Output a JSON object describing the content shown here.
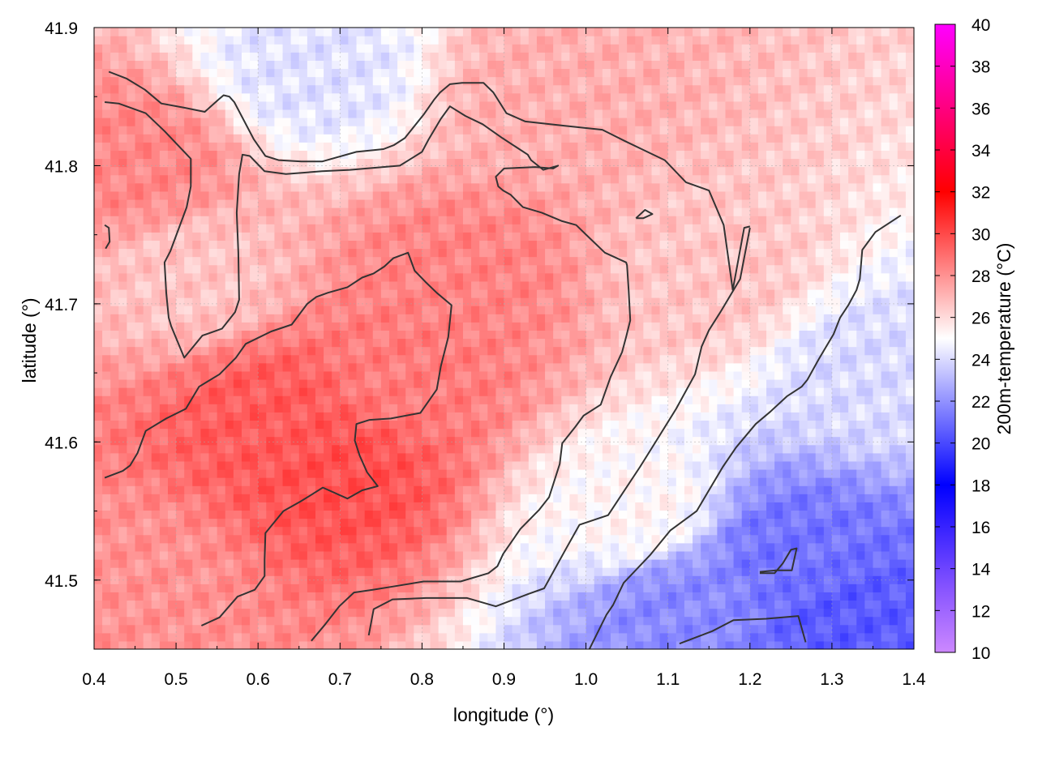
{
  "chart_data": {
    "type": "heatmap",
    "title": "",
    "xlabel": "longitude (°)",
    "ylabel": "latitude (°)",
    "colorbar_label": "200m-temperature (°C)",
    "xlim": [
      0.4,
      1.4
    ],
    "ylim": [
      41.45,
      41.9
    ],
    "x_ticks": [
      "0.4",
      "0.5",
      "0.6",
      "0.7",
      "0.8",
      "0.9",
      "1.0",
      "1.1",
      "1.2",
      "1.3",
      "1.4"
    ],
    "y_ticks": [
      "41.5",
      "41.6",
      "41.7",
      "41.8",
      "41.9"
    ],
    "colorbar_range": [
      10,
      40
    ],
    "colorbar_ticks": [
      "10",
      "12",
      "14",
      "16",
      "18",
      "20",
      "22",
      "24",
      "26",
      "28",
      "30",
      "32",
      "34",
      "36",
      "38",
      "40"
    ],
    "colormap": [
      {
        "value": 10,
        "color": "#cc88ff"
      },
      {
        "value": 13,
        "color": "#8855ff"
      },
      {
        "value": 18,
        "color": "#0000ff"
      },
      {
        "value": 25,
        "color": "#ffffff"
      },
      {
        "value": 32,
        "color": "#ff0000"
      },
      {
        "value": 40,
        "color": "#ff00ff"
      }
    ],
    "contour_levels": [
      24,
      26,
      28
    ],
    "grid": true,
    "field_description_points": [
      {
        "lon": 0.7,
        "lat": 41.58,
        "temp": 29.8
      },
      {
        "lon": 0.62,
        "lat": 41.62,
        "temp": 29.5
      },
      {
        "lon": 0.85,
        "lat": 41.72,
        "temp": 28.4
      },
      {
        "lon": 0.78,
        "lat": 41.65,
        "temp": 28.6
      },
      {
        "lon": 0.45,
        "lat": 41.8,
        "temp": 28.3
      },
      {
        "lon": 0.52,
        "lat": 41.72,
        "temp": 26.6
      },
      {
        "lon": 0.95,
        "lat": 41.85,
        "temp": 27.2
      },
      {
        "lon": 1.15,
        "lat": 41.72,
        "temp": 26.6
      },
      {
        "lon": 1.25,
        "lat": 41.52,
        "temp": 21.2
      },
      {
        "lon": 1.32,
        "lat": 41.47,
        "temp": 20.5
      },
      {
        "lon": 1.12,
        "lat": 41.48,
        "temp": 21.8
      },
      {
        "lon": 1.35,
        "lat": 41.65,
        "temp": 24.0
      },
      {
        "lon": 0.67,
        "lat": 41.87,
        "temp": 24.2
      },
      {
        "lon": 0.45,
        "lat": 41.5,
        "temp": 28.0
      },
      {
        "lon": 1.06,
        "lat": 41.55,
        "temp": 25.2
      }
    ],
    "contours": [
      [
        [
          0.413,
          41.757
        ],
        [
          0.418,
          41.755
        ],
        [
          0.419,
          41.745
        ],
        [
          0.414,
          41.74
        ]
      ],
      [
        [
          0.418,
          41.868
        ],
        [
          0.44,
          41.863
        ],
        [
          0.462,
          41.855
        ],
        [
          0.482,
          41.845
        ],
        [
          0.51,
          41.842
        ],
        [
          0.535,
          41.839
        ],
        [
          0.552,
          41.848
        ],
        [
          0.558,
          41.851
        ],
        [
          0.565,
          41.85
        ],
        [
          0.571,
          41.846
        ],
        [
          0.595,
          41.819
        ],
        [
          0.609,
          41.807
        ],
        [
          0.625,
          41.804
        ],
        [
          0.653,
          41.803
        ],
        [
          0.678,
          41.803
        ],
        [
          0.72,
          41.81
        ],
        [
          0.753,
          41.812
        ],
        [
          0.766,
          41.815
        ],
        [
          0.779,
          41.82
        ],
        [
          0.802,
          41.837
        ],
        [
          0.815,
          41.848
        ],
        [
          0.822,
          41.853
        ],
        [
          0.834,
          41.859
        ],
        [
          0.849,
          41.86
        ],
        [
          0.875,
          41.86
        ],
        [
          0.887,
          41.853
        ],
        [
          0.903,
          41.838
        ],
        [
          0.926,
          41.832
        ],
        [
          0.972,
          41.829
        ],
        [
          1.02,
          41.826
        ],
        [
          1.047,
          41.818
        ],
        [
          1.068,
          41.812
        ],
        [
          1.096,
          41.804
        ],
        [
          1.122,
          41.788
        ],
        [
          1.15,
          41.782
        ],
        [
          1.168,
          41.757
        ],
        [
          1.179,
          41.71
        ],
        [
          1.193,
          41.755
        ],
        [
          1.2,
          41.756
        ]
      ],
      [
        [
          0.413,
          41.846
        ],
        [
          0.43,
          41.845
        ],
        [
          0.463,
          41.838
        ],
        [
          0.486,
          41.825
        ],
        [
          0.518,
          41.805
        ],
        [
          0.518,
          41.785
        ],
        [
          0.513,
          41.77
        ],
        [
          0.493,
          41.738
        ],
        [
          0.486,
          41.73
        ],
        [
          0.488,
          41.708
        ],
        [
          0.491,
          41.69
        ],
        [
          0.494,
          41.684
        ],
        [
          0.51,
          41.661
        ],
        [
          0.532,
          41.677
        ],
        [
          0.556,
          41.682
        ],
        [
          0.572,
          41.694
        ],
        [
          0.577,
          41.703
        ],
        [
          0.576,
          41.737
        ],
        [
          0.574,
          41.766
        ],
        [
          0.577,
          41.794
        ],
        [
          0.581,
          41.808
        ],
        [
          0.59,
          41.807
        ],
        [
          0.608,
          41.796
        ],
        [
          0.634,
          41.794
        ],
        [
          0.678,
          41.796
        ],
        [
          0.712,
          41.797
        ],
        [
          0.773,
          41.8
        ],
        [
          0.8,
          41.81
        ],
        [
          0.808,
          41.819
        ],
        [
          0.823,
          41.834
        ],
        [
          0.834,
          41.843
        ],
        [
          0.853,
          41.836
        ],
        [
          0.874,
          41.83
        ],
        [
          0.898,
          41.82
        ],
        [
          0.929,
          41.808
        ],
        [
          0.933,
          41.804
        ],
        [
          0.948,
          41.797
        ],
        [
          0.966,
          41.8
        ],
        [
          0.96,
          41.798
        ],
        [
          0.938,
          41.799
        ],
        [
          0.9,
          41.798
        ],
        [
          0.89,
          41.792
        ],
        [
          0.893,
          41.785
        ],
        [
          0.899,
          41.782
        ],
        [
          0.908,
          41.779
        ],
        [
          0.923,
          41.77
        ],
        [
          0.946,
          41.766
        ],
        [
          0.97,
          41.76
        ],
        [
          0.988,
          41.757
        ],
        [
          1.002,
          41.749
        ],
        [
          1.023,
          41.737
        ],
        [
          1.049,
          41.73
        ],
        [
          1.05,
          41.728
        ],
        [
          1.052,
          41.71
        ],
        [
          1.054,
          41.688
        ],
        [
          1.049,
          41.676
        ],
        [
          1.044,
          41.665
        ],
        [
          1.03,
          41.647
        ],
        [
          1.018,
          41.627
        ],
        [
          0.997,
          41.619
        ],
        [
          0.987,
          41.611
        ],
        [
          0.971,
          41.599
        ],
        [
          0.968,
          41.584
        ],
        [
          0.955,
          41.56
        ],
        [
          0.943,
          41.551
        ],
        [
          0.92,
          41.537
        ],
        [
          0.899,
          41.519
        ],
        [
          0.892,
          41.51
        ],
        [
          0.881,
          41.505
        ],
        [
          0.847,
          41.499
        ],
        [
          0.802,
          41.499
        ],
        [
          0.761,
          41.495
        ],
        [
          0.74,
          41.493
        ],
        [
          0.717,
          41.491
        ],
        [
          0.699,
          41.481
        ],
        [
          0.682,
          41.468
        ],
        [
          0.665,
          41.456
        ]
      ],
      [
        [
          0.531,
          41.467
        ],
        [
          0.553,
          41.473
        ],
        [
          0.575,
          41.488
        ],
        [
          0.596,
          41.493
        ],
        [
          0.608,
          41.503
        ],
        [
          0.608,
          41.515
        ],
        [
          0.609,
          41.534
        ],
        [
          0.631,
          41.55
        ],
        [
          0.652,
          41.557
        ],
        [
          0.663,
          41.561
        ],
        [
          0.679,
          41.567
        ],
        [
          0.709,
          41.559
        ],
        [
          0.727,
          41.565
        ],
        [
          0.746,
          41.568
        ],
        [
          0.733,
          41.578
        ],
        [
          0.724,
          41.59
        ],
        [
          0.718,
          41.601
        ],
        [
          0.72,
          41.613
        ],
        [
          0.736,
          41.616
        ],
        [
          0.762,
          41.617
        ],
        [
          0.798,
          41.621
        ],
        [
          0.818,
          41.638
        ],
        [
          0.823,
          41.655
        ],
        [
          0.832,
          41.676
        ],
        [
          0.836,
          41.699
        ],
        [
          0.818,
          41.708
        ],
        [
          0.804,
          41.716
        ],
        [
          0.791,
          41.724
        ],
        [
          0.783,
          41.737
        ],
        [
          0.765,
          41.733
        ],
        [
          0.754,
          41.727
        ],
        [
          0.741,
          41.722
        ],
        [
          0.727,
          41.719
        ],
        [
          0.709,
          41.712
        ],
        [
          0.685,
          41.708
        ],
        [
          0.671,
          41.705
        ],
        [
          0.66,
          41.7
        ],
        [
          0.641,
          41.685
        ],
        [
          0.616,
          41.68
        ],
        [
          0.585,
          41.671
        ],
        [
          0.573,
          41.661
        ],
        [
          0.553,
          41.649
        ],
        [
          0.528,
          41.64
        ],
        [
          0.512,
          41.624
        ],
        [
          0.488,
          41.617
        ],
        [
          0.463,
          41.608
        ],
        [
          0.453,
          41.592
        ],
        [
          0.444,
          41.583
        ],
        [
          0.435,
          41.579
        ],
        [
          0.413,
          41.574
        ]
      ],
      [
        [
          1.0,
          41.445
        ],
        [
          1.025,
          41.475
        ],
        [
          1.033,
          41.482
        ],
        [
          1.046,
          41.498
        ],
        [
          1.078,
          41.518
        ],
        [
          1.103,
          41.536
        ],
        [
          1.135,
          41.55
        ],
        [
          1.148,
          41.563
        ],
        [
          1.167,
          41.582
        ],
        [
          1.183,
          41.596
        ],
        [
          1.207,
          41.613
        ],
        [
          1.225,
          41.622
        ],
        [
          1.245,
          41.633
        ],
        [
          1.263,
          41.64
        ],
        [
          1.27,
          41.645
        ],
        [
          1.284,
          41.66
        ],
        [
          1.292,
          41.668
        ],
        [
          1.302,
          41.678
        ],
        [
          1.31,
          41.69
        ],
        [
          1.32,
          41.699
        ],
        [
          1.33,
          41.71
        ],
        [
          1.334,
          41.718
        ],
        [
          1.337,
          41.739
        ],
        [
          1.353,
          41.752
        ],
        [
          1.384,
          41.764
        ]
      ],
      [
        [
          1.212,
          41.506
        ],
        [
          1.232,
          41.507
        ],
        [
          1.251,
          41.507
        ],
        [
          1.257,
          41.523
        ],
        [
          1.25,
          41.522
        ],
        [
          1.24,
          41.512
        ],
        [
          1.23,
          41.505
        ],
        [
          1.212,
          41.505
        ]
      ],
      [
        [
          1.061,
          41.762
        ],
        [
          1.072,
          41.768
        ],
        [
          1.081,
          41.765
        ],
        [
          1.07,
          41.762
        ],
        [
          1.061,
          41.762
        ]
      ],
      [
        [
          1.114,
          41.454
        ],
        [
          1.154,
          41.463
        ],
        [
          1.18,
          41.471
        ],
        [
          1.22,
          41.472
        ],
        [
          1.259,
          41.474
        ],
        [
          1.268,
          41.455
        ]
      ],
      [
        [
          0.735,
          41.46
        ],
        [
          0.741,
          41.479
        ],
        [
          0.764,
          41.486
        ],
        [
          0.805,
          41.487
        ],
        [
          0.855,
          41.487
        ],
        [
          0.89,
          41.481
        ],
        [
          0.93,
          41.49
        ],
        [
          0.949,
          41.494
        ],
        [
          0.975,
          41.522
        ],
        [
          0.992,
          41.54
        ],
        [
          1.027,
          41.547
        ],
        [
          1.066,
          41.582
        ],
        [
          1.086,
          41.601
        ],
        [
          1.11,
          41.624
        ],
        [
          1.133,
          41.649
        ],
        [
          1.141,
          41.669
        ],
        [
          1.15,
          41.681
        ],
        [
          1.165,
          41.695
        ],
        [
          1.188,
          41.718
        ],
        [
          1.2,
          41.755
        ]
      ]
    ]
  }
}
